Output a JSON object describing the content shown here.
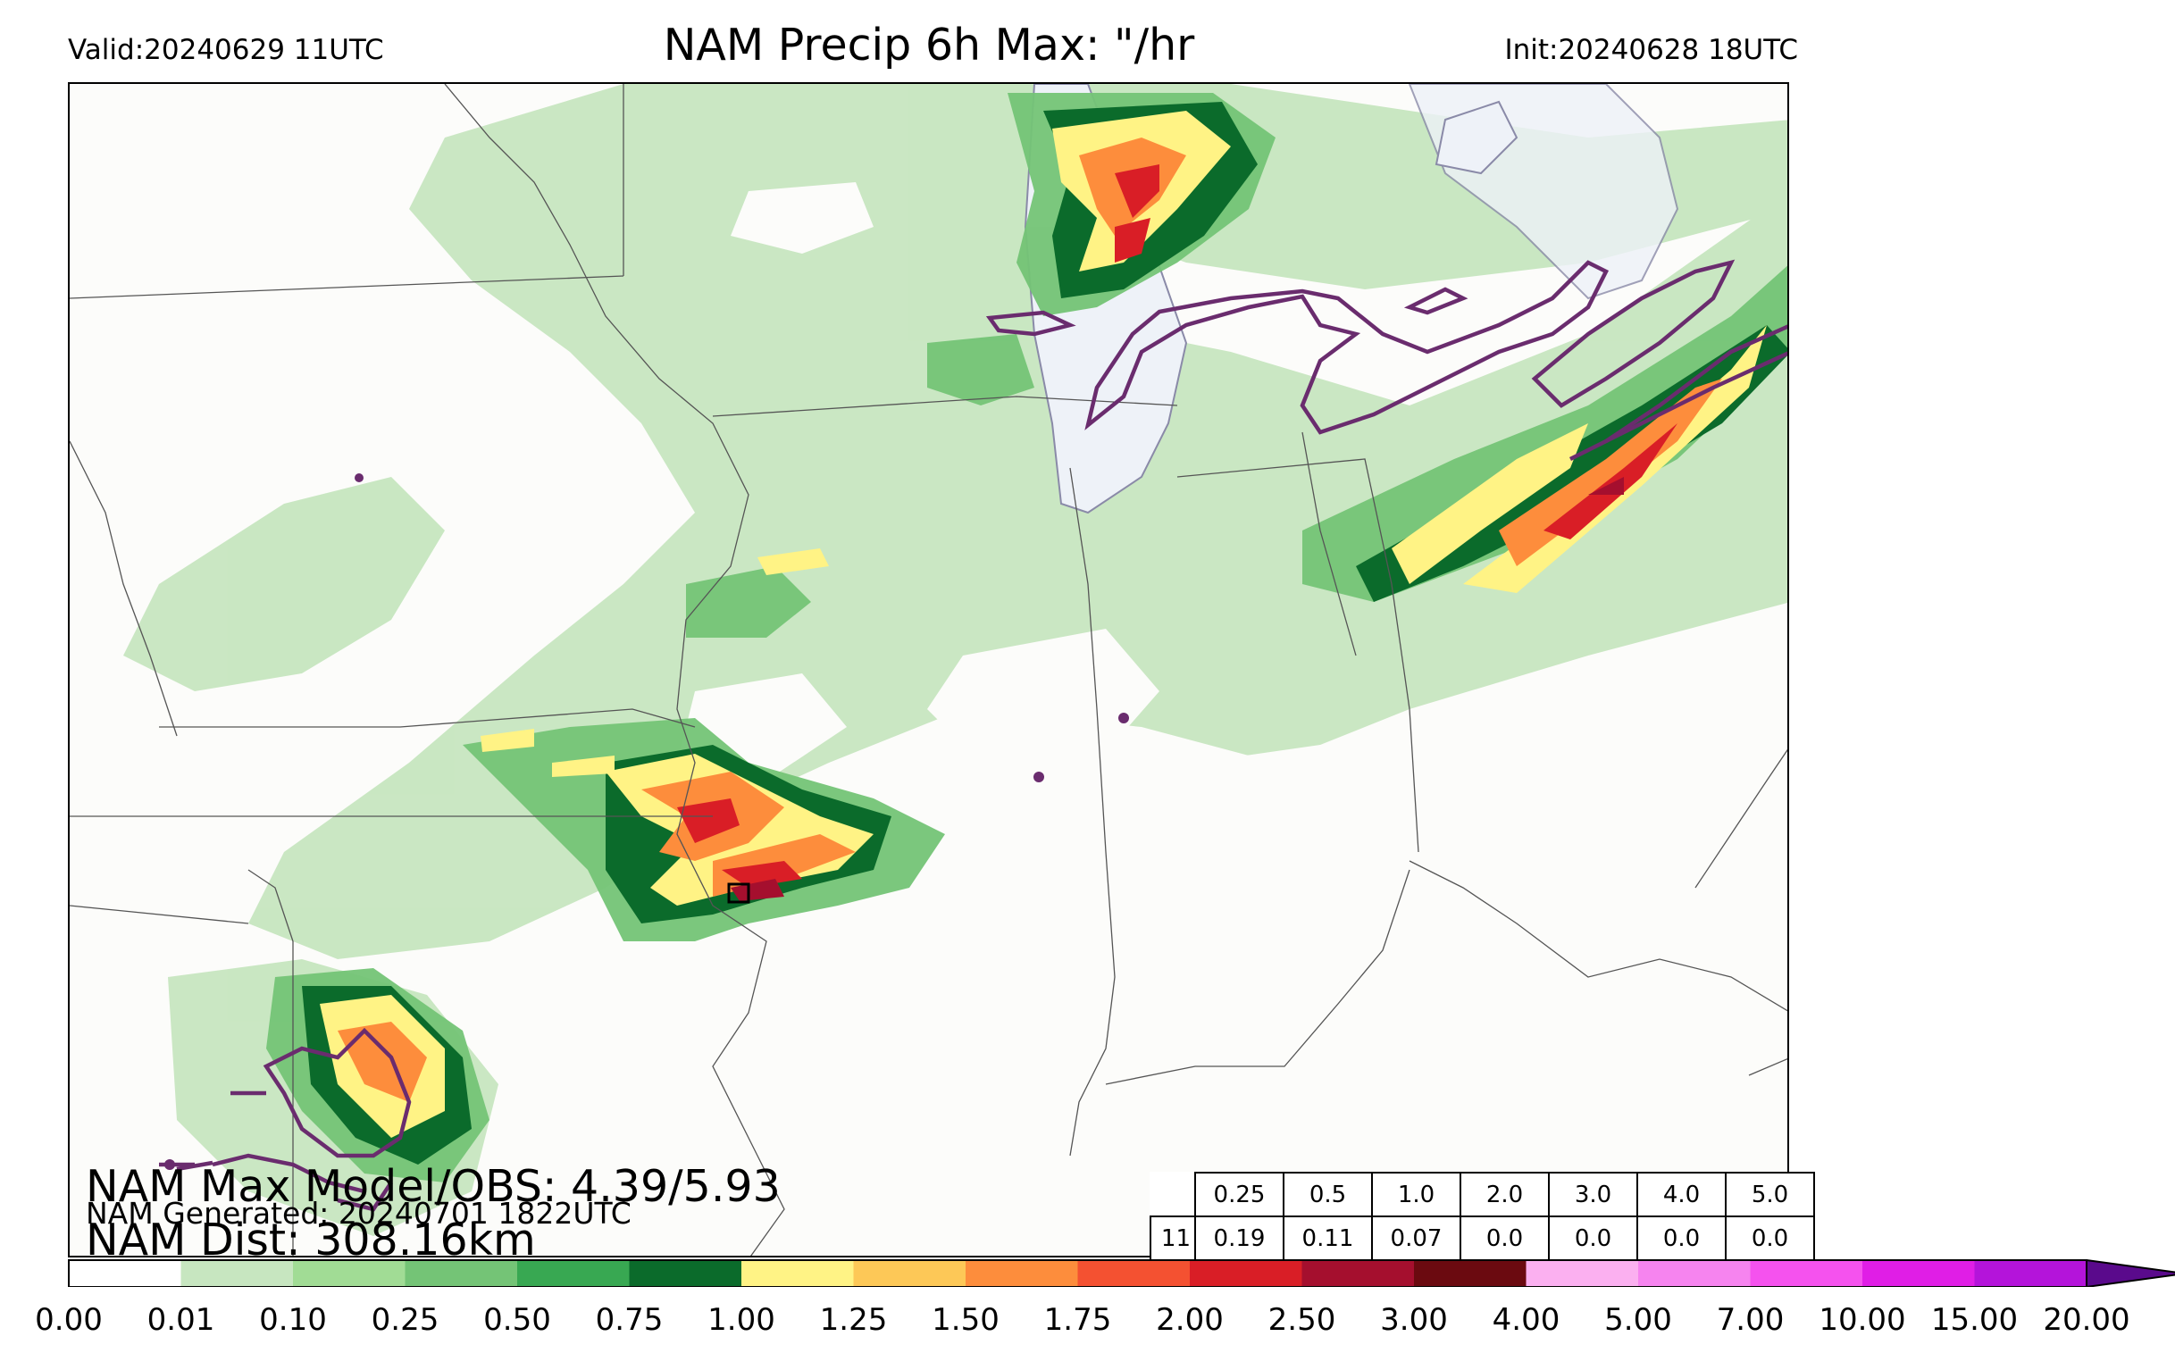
{
  "header": {
    "valid": "Valid:20240629 11UTC",
    "title": "NAM Precip 6h Max: \"/hr",
    "init": "Init:20240628 18UTC"
  },
  "stats": {
    "max_text": "NAM Max Model/OBS: 4.39/5.93",
    "generated_text": "NAM Generated: 20240701 1822UTC",
    "dist_text": "NAM Dist: 308.16km"
  },
  "table": {
    "thresholds": [
      "0.25",
      "0.5",
      "1.0",
      "2.0",
      "3.0",
      "4.0",
      "5.0"
    ],
    "row_label": "11",
    "values": [
      "0.19",
      "0.11",
      "0.07",
      "0.0",
      "0.0",
      "0.0",
      "0.0"
    ]
  },
  "colorbar": {
    "ticks": [
      "0.00",
      "0.01",
      "0.10",
      "0.25",
      "0.50",
      "0.75",
      "1.00",
      "1.25",
      "1.50",
      "1.75",
      "2.00",
      "2.50",
      "3.00",
      "4.00",
      "5.00",
      "7.00",
      "10.00",
      "15.00",
      "20.00"
    ],
    "colors": [
      "#ffffff",
      "#c7e6c0",
      "#a1dc95",
      "#74c476",
      "#38a852",
      "#0b6b2b",
      "#fff385",
      "#fdc857",
      "#fd8d3c",
      "#f45131",
      "#d91e26",
      "#a50f2e",
      "#6b0a10",
      "#fbb0f0",
      "#f684ef",
      "#f552ee",
      "#e01ee6",
      "#b414da",
      "#8a0dc8"
    ],
    "extend_color": "#5a0a8c"
  },
  "map_colors": {
    "light_green": "#c7e6c0",
    "mid_green": "#74c476",
    "dark_green": "#0b6b2b",
    "yellow": "#fff385",
    "orange": "#fd8d3c",
    "red": "#d91e26",
    "dark_red": "#a50f2e",
    "observed_contour": "#6a2c6e",
    "lake": "#eef2f8",
    "border": "#555555"
  }
}
